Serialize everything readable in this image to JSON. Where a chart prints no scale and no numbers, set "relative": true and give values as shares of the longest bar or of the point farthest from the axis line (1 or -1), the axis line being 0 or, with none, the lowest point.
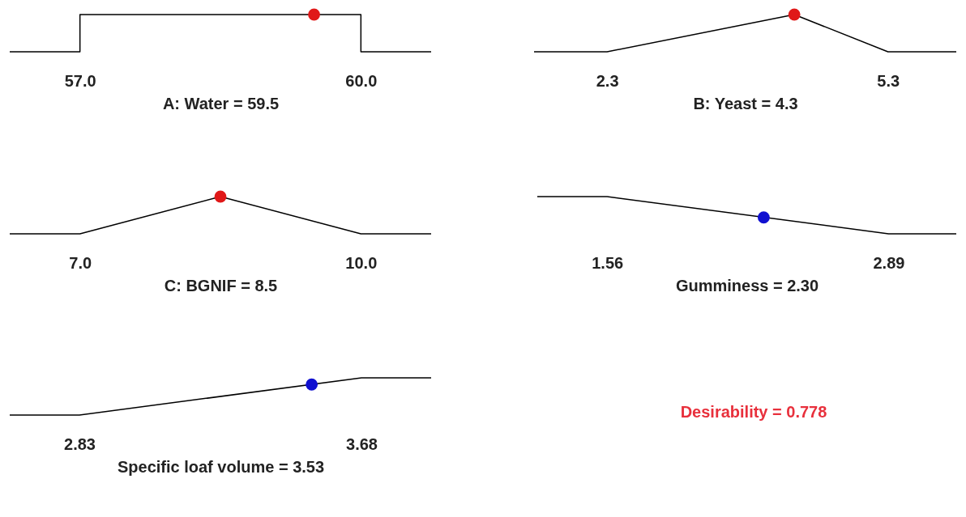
{
  "chart_data": [
    {
      "type": "line",
      "relative": true,
      "xlabel": "A: Water = 59.5",
      "xlim": [
        56.25,
        60.75
      ],
      "xticks": [
        {
          "value": 57,
          "label": "57.0"
        },
        {
          "value": 60,
          "label": "60.0"
        }
      ],
      "series": [
        {
          "type": "line",
          "color": "#000000",
          "x": [
            56.25,
            57,
            57,
            60,
            60,
            60.75
          ],
          "values": [
            0,
            0,
            1,
            1,
            0,
            0
          ]
        },
        {
          "type": "scatter",
          "color": "#e01818",
          "x": [
            59.5
          ],
          "values": [
            1
          ]
        }
      ]
    },
    {
      "type": "line",
      "relative": true,
      "xlabel": "B: Yeast = 4.3",
      "xlim": [
        1.52,
        6.03
      ],
      "xticks": [
        2.3,
        5.3
      ],
      "series": [
        {
          "type": "line",
          "color": "#000000",
          "x": [
            1.52,
            2.3,
            4.3,
            5.3,
            6.03
          ],
          "values": [
            0,
            0,
            1,
            0,
            0
          ]
        },
        {
          "type": "scatter",
          "color": "#e01818",
          "x": [
            4.3
          ],
          "values": [
            1
          ]
        }
      ]
    },
    {
      "type": "line",
      "relative": true,
      "xlabel": "C: BGNIF = 8.5",
      "xlim": [
        6.25,
        10.75
      ],
      "xticks": [
        {
          "value": 7,
          "label": "7.0"
        },
        {
          "value": 10,
          "label": "10.0"
        }
      ],
      "series": [
        {
          "type": "line",
          "color": "#000000",
          "x": [
            6.25,
            7,
            8.5,
            10,
            10.75
          ],
          "values": [
            0,
            0,
            1,
            0,
            0
          ]
        },
        {
          "type": "scatter",
          "color": "#e01818",
          "x": [
            8.5
          ],
          "values": [
            1
          ]
        }
      ]
    },
    {
      "type": "line",
      "relative": true,
      "xlabel": "Gumminess = 2.30",
      "xlim": [
        1.23,
        3.21
      ],
      "xticks": [
        1.56,
        2.89
      ],
      "series": [
        {
          "type": "line",
          "color": "#000000",
          "x": [
            1.23,
            1.56,
            2.89,
            3.21
          ],
          "values": [
            1,
            1,
            0,
            0
          ]
        },
        {
          "type": "scatter",
          "color": "#1010d0",
          "x": [
            2.3
          ],
          "values": [
            0.44
          ]
        }
      ]
    },
    {
      "type": "line",
      "relative": true,
      "xlabel": "Specific loaf volume = 3.53",
      "xlim": [
        2.62,
        3.89
      ],
      "xticks": [
        2.83,
        3.68
      ],
      "series": [
        {
          "type": "line",
          "color": "#000000",
          "x": [
            2.62,
            2.83,
            3.68,
            3.89
          ],
          "values": [
            0,
            0,
            1,
            1
          ]
        },
        {
          "type": "scatter",
          "color": "#1010d0",
          "x": [
            3.53
          ],
          "values": [
            0.82
          ]
        }
      ]
    },
    {
      "type": "other",
      "annotations": [
        "Desirability = 0.778"
      ]
    }
  ]
}
